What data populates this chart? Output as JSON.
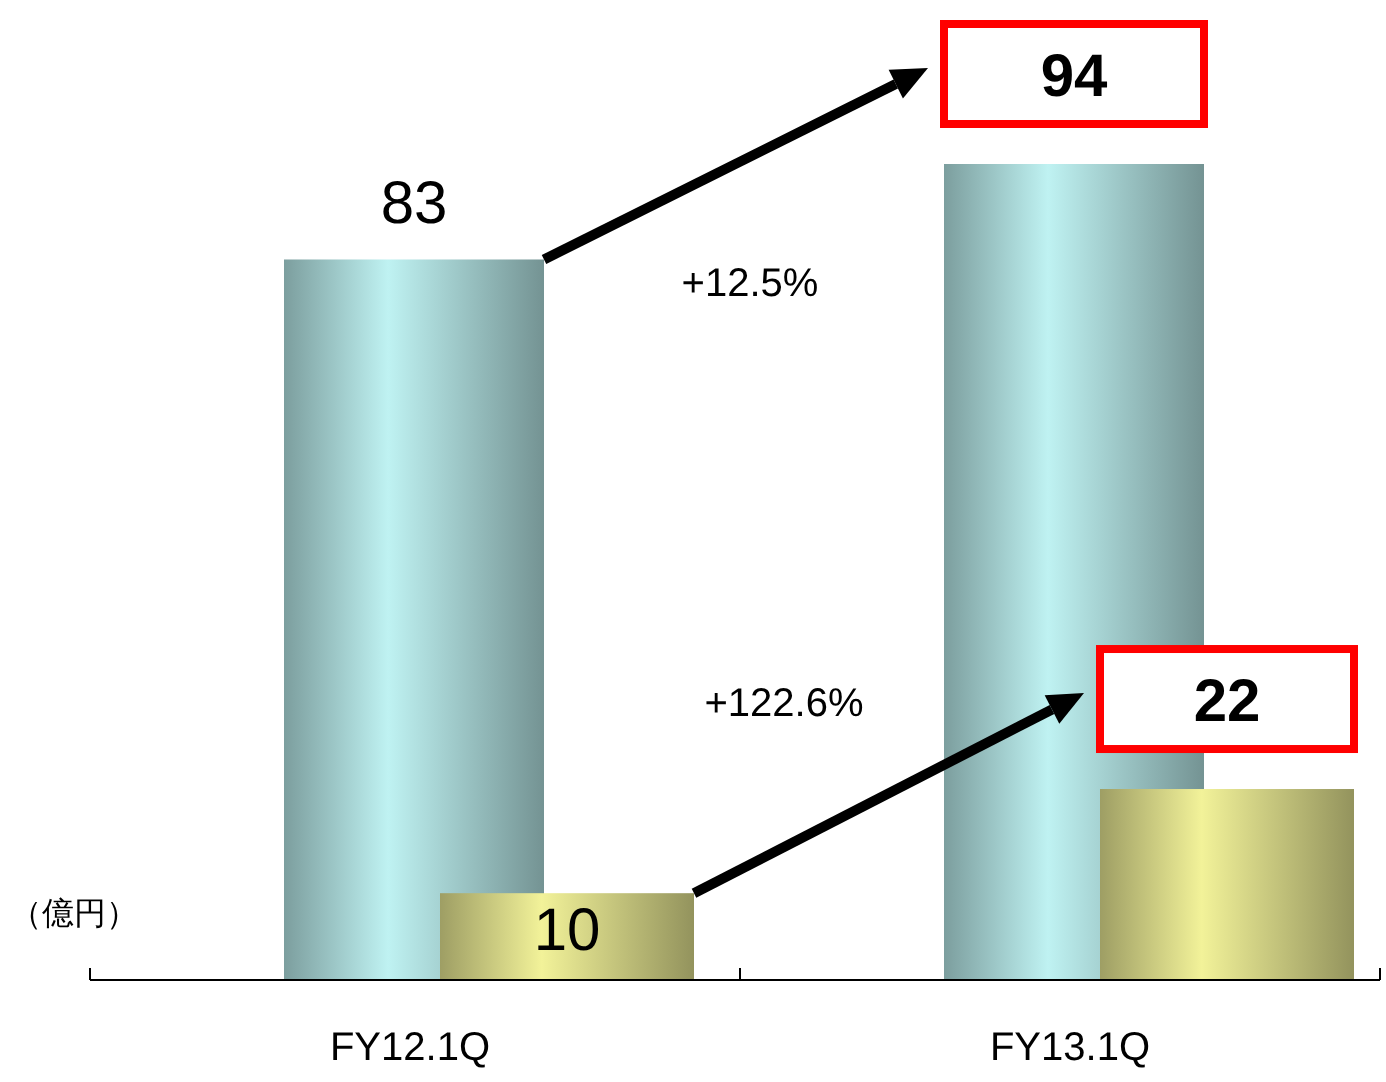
{
  "chart_data": {
    "type": "bar",
    "ylabel": "（億円）",
    "categories": [
      "FY12.1Q",
      "FY13.1Q"
    ],
    "series": [
      {
        "color": "#bff2f2",
        "values": [
          83,
          94
        ]
      },
      {
        "color": "#f2f299",
        "values": [
          10,
          22
        ]
      }
    ],
    "data_labels": true,
    "annotations": [
      "+12.5%",
      "+122.6%"
    ]
  }
}
